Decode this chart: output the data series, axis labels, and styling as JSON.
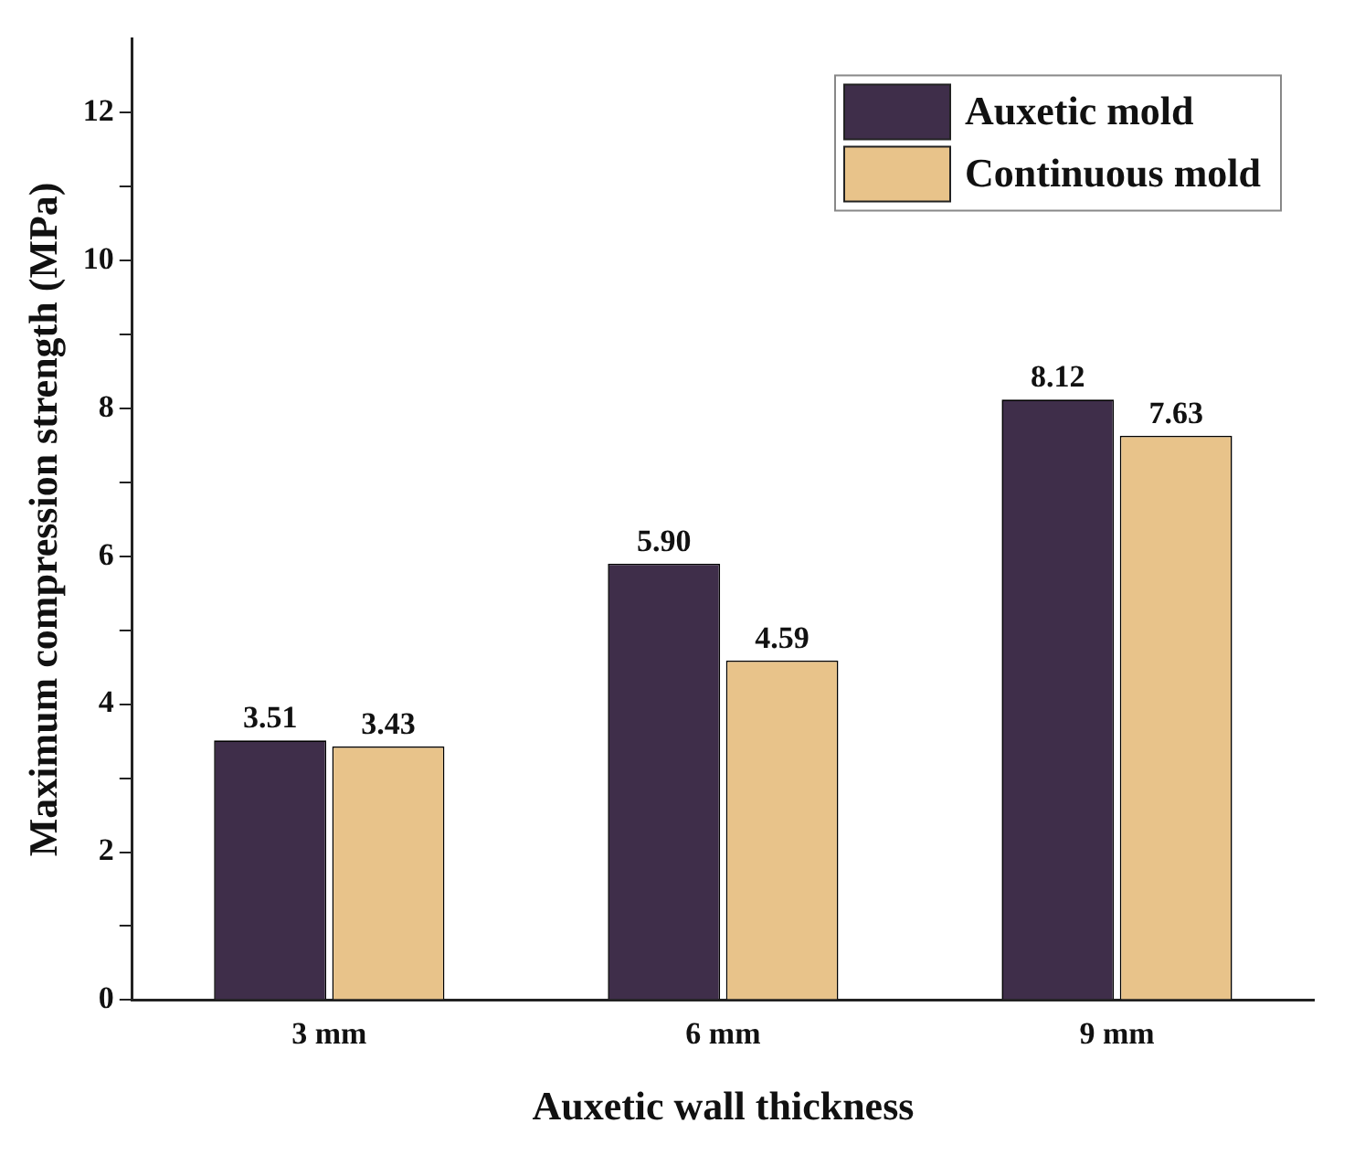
{
  "chart_data": {
    "type": "bar",
    "xlabel": "Auxetic wall thickness",
    "ylabel": "Maximum compression strength (MPa)",
    "categories": [
      "3 mm",
      "6 mm",
      "9 mm"
    ],
    "series": [
      {
        "name": "Auxetic mold",
        "color": "#3f2e4a",
        "values": [
          3.51,
          5.9,
          8.12
        ],
        "value_labels": [
          "3.51",
          "5.90",
          "8.12"
        ]
      },
      {
        "name": "Continuous mold",
        "color": "#e8c38a",
        "values": [
          3.43,
          4.59,
          7.63
        ],
        "value_labels": [
          "3.43",
          "4.59",
          "7.63"
        ]
      }
    ],
    "ylim": [
      0,
      13
    ],
    "yticks": [
      0,
      {
        "value": 1,
        "label": null
      },
      2,
      {
        "value": 3,
        "label": null
      },
      4,
      {
        "value": 5,
        "label": null
      },
      6,
      {
        "value": 7,
        "label": null
      },
      8,
      {
        "value": 9,
        "label": null
      },
      10,
      {
        "value": 11,
        "label": null
      },
      12
    ],
    "grid": false,
    "legend": "top right"
  }
}
